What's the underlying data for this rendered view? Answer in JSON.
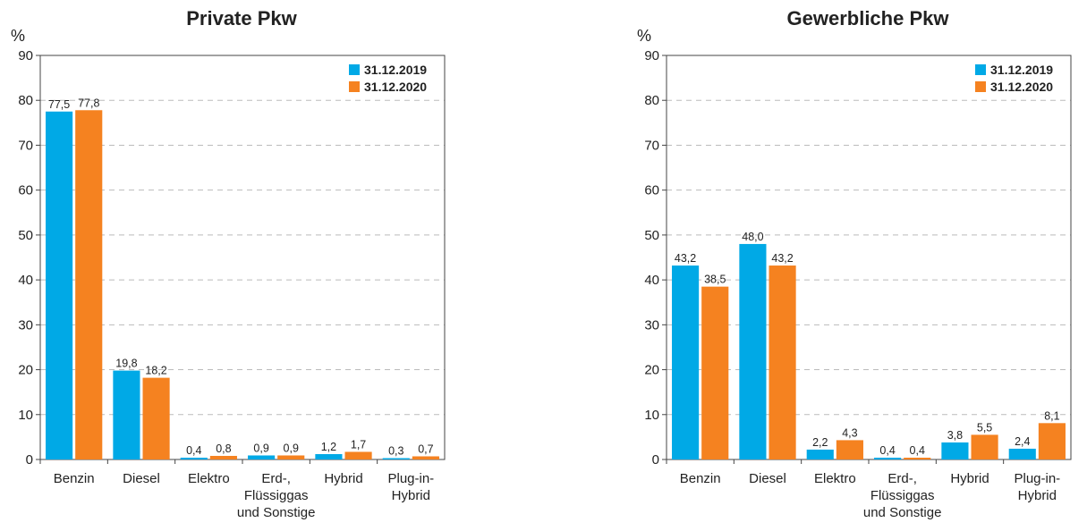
{
  "colors": {
    "series_2019": "#00a9e6",
    "series_2020": "#f58220",
    "axis": "#444444",
    "grid": "#bbbbbb"
  },
  "chart_data": [
    {
      "type": "bar",
      "title": "Private Pkw",
      "ylabel": "%",
      "ylim": [
        0,
        90
      ],
      "yticks": [
        0,
        10,
        20,
        30,
        40,
        50,
        60,
        70,
        80,
        90
      ],
      "grid": true,
      "legend": "top-right",
      "categories": [
        [
          "Benzin"
        ],
        [
          "Diesel"
        ],
        [
          "Elektro"
        ],
        [
          "Erd-,",
          "Flüssiggas",
          "und Sonstige"
        ],
        [
          "Hybrid"
        ],
        [
          "Plug-in-",
          "Hybrid"
        ]
      ],
      "series": [
        {
          "name": "31.12.2019",
          "values": [
            77.5,
            19.8,
            0.4,
            0.9,
            1.2,
            0.3
          ],
          "labels": [
            "77,5",
            "19,8",
            "0,4",
            "0,9",
            "1,2",
            "0,3"
          ]
        },
        {
          "name": "31.12.2020",
          "values": [
            77.8,
            18.2,
            0.8,
            0.9,
            1.7,
            0.7
          ],
          "labels": [
            "77,8",
            "18,2",
            "0,8",
            "0,9",
            "1,7",
            "0,7"
          ]
        }
      ]
    },
    {
      "type": "bar",
      "title": "Gewerbliche Pkw",
      "ylabel": "%",
      "ylim": [
        0,
        90
      ],
      "yticks": [
        0,
        10,
        20,
        30,
        40,
        50,
        60,
        70,
        80,
        90
      ],
      "grid": true,
      "legend": "top-right",
      "categories": [
        [
          "Benzin"
        ],
        [
          "Diesel"
        ],
        [
          "Elektro"
        ],
        [
          "Erd-,",
          "Flüssiggas",
          "und Sonstige"
        ],
        [
          "Hybrid"
        ],
        [
          "Plug-in-",
          "Hybrid"
        ]
      ],
      "series": [
        {
          "name": "31.12.2019",
          "values": [
            43.2,
            48.0,
            2.2,
            0.4,
            3.8,
            2.4
          ],
          "labels": [
            "43,2",
            "48,0",
            "2,2",
            "0,4",
            "3,8",
            "2,4"
          ]
        },
        {
          "name": "31.12.2020",
          "values": [
            38.5,
            43.2,
            4.3,
            0.4,
            5.5,
            8.1
          ],
          "labels": [
            "38,5",
            "43,2",
            "4,3",
            "0,4",
            "5,5",
            "8,1"
          ]
        }
      ]
    }
  ]
}
